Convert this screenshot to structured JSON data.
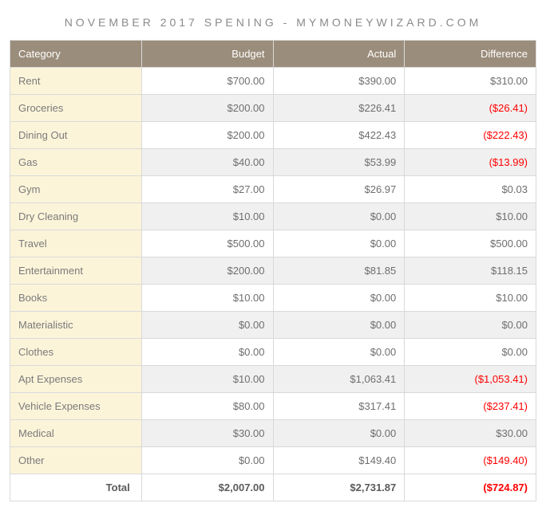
{
  "title": "NOVEMBER 2017 SPENING - MYMONEYWIZARD.COM",
  "columns": [
    "Category",
    "Budget",
    "Actual",
    "Difference"
  ],
  "rows": [
    {
      "category": "Rent",
      "budget": "$700.00",
      "actual": "$390.00",
      "diff": "$310.00",
      "neg": false
    },
    {
      "category": "Groceries",
      "budget": "$200.00",
      "actual": "$226.41",
      "diff": "($26.41)",
      "neg": true
    },
    {
      "category": "Dining Out",
      "budget": "$200.00",
      "actual": "$422.43",
      "diff": "($222.43)",
      "neg": true
    },
    {
      "category": "Gas",
      "budget": "$40.00",
      "actual": "$53.99",
      "diff": "($13.99)",
      "neg": true
    },
    {
      "category": "Gym",
      "budget": "$27.00",
      "actual": "$26.97",
      "diff": "$0.03",
      "neg": false
    },
    {
      "category": "Dry Cleaning",
      "budget": "$10.00",
      "actual": "$0.00",
      "diff": "$10.00",
      "neg": false
    },
    {
      "category": "Travel",
      "budget": "$500.00",
      "actual": "$0.00",
      "diff": "$500.00",
      "neg": false
    },
    {
      "category": "Entertainment",
      "budget": "$200.00",
      "actual": "$81.85",
      "diff": "$118.15",
      "neg": false
    },
    {
      "category": "Books",
      "budget": "$10.00",
      "actual": "$0.00",
      "diff": "$10.00",
      "neg": false
    },
    {
      "category": "Materialistic",
      "budget": "$0.00",
      "actual": "$0.00",
      "diff": "$0.00",
      "neg": false
    },
    {
      "category": "Clothes",
      "budget": "$0.00",
      "actual": "$0.00",
      "diff": "$0.00",
      "neg": false
    },
    {
      "category": "Apt Expenses",
      "budget": "$10.00",
      "actual": "$1,063.41",
      "diff": "($1,053.41)",
      "neg": true
    },
    {
      "category": "Vehicle Expenses",
      "budget": "$80.00",
      "actual": "$317.41",
      "diff": "($237.41)",
      "neg": true
    },
    {
      "category": "Medical",
      "budget": "$30.00",
      "actual": "$0.00",
      "diff": "$30.00",
      "neg": false
    },
    {
      "category": "Other",
      "budget": "$0.00",
      "actual": "$149.40",
      "diff": "($149.40)",
      "neg": true
    }
  ],
  "total": {
    "label": "Total",
    "budget": "$2,007.00",
    "actual": "$2,731.87",
    "diff": "($724.87)",
    "neg": true
  },
  "colors": {
    "header_bg": "#9b8d7b",
    "header_text": "#ffffff",
    "category_bg": "#fcf4d9",
    "alt_row_bg": "#f0f0f0",
    "border": "#d9d9d9",
    "text": "#6e6e6e",
    "negative": "#ff0000"
  },
  "typography": {
    "base_fontsize": 13,
    "title_fontsize": 14,
    "title_letterspacing": 4
  }
}
